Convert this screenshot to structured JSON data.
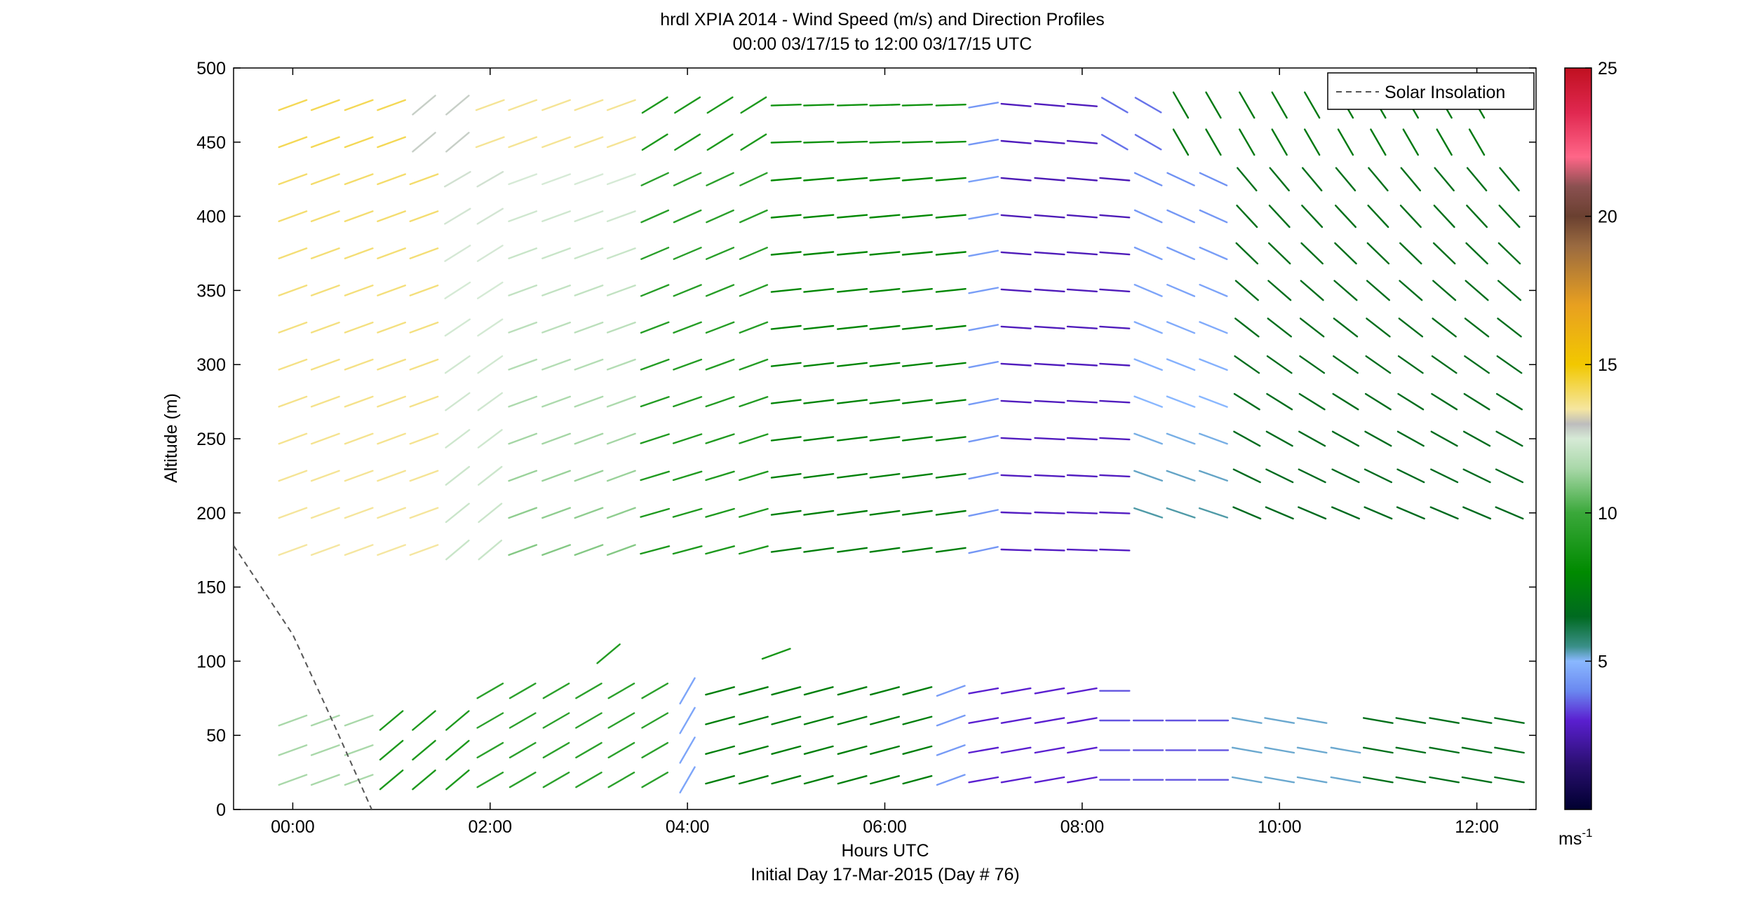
{
  "chart_data": {
    "type": "wind_barb_profile",
    "title": "hrdl XPIA 2014 - Wind Speed (m/s) and Direction Profiles",
    "subtitle": "00:00 03/17/15 to 12:00 03/17/15  UTC",
    "xlabel": "Hours UTC",
    "xlabel2": "Initial Day 17-Mar-2015 (Day # 76)",
    "ylabel": "Altitude (m)",
    "xlim": [
      -0.6,
      12.6
    ],
    "ylim": [
      0,
      500
    ],
    "x_ticks": [
      {
        "value": 0,
        "label": "00:00"
      },
      {
        "value": 2,
        "label": "02:00"
      },
      {
        "value": 4,
        "label": "04:00"
      },
      {
        "value": 6,
        "label": "06:00"
      },
      {
        "value": 8,
        "label": "08:00"
      },
      {
        "value": 10,
        "label": "10:00"
      },
      {
        "value": 12,
        "label": "12:00"
      }
    ],
    "y_ticks": [
      0,
      50,
      100,
      150,
      200,
      250,
      300,
      350,
      400,
      450,
      500
    ],
    "legend": {
      "label": "Solar Insolation",
      "placement": "top-right"
    },
    "solar_insolation_line": {
      "style": "dashed",
      "color": "#555555",
      "points": [
        [
          -0.6,
          178
        ],
        [
          0.0,
          118
        ],
        [
          0.4,
          60
        ],
        [
          0.8,
          0
        ]
      ]
    },
    "colorbar": {
      "min": 0,
      "max": 25,
      "ticks": [
        5,
        10,
        15,
        20,
        25
      ],
      "unit_label": "ms",
      "unit_superscript": "-1",
      "colormap": [
        [
          0,
          "#000030"
        ],
        [
          1.5,
          "#2a0f70"
        ],
        [
          3,
          "#5a1fd0"
        ],
        [
          4,
          "#6a88f0"
        ],
        [
          5,
          "#8ab8ff"
        ],
        [
          5.5,
          "#3a8f88"
        ],
        [
          6.5,
          "#006a20"
        ],
        [
          8,
          "#008a00"
        ],
        [
          10,
          "#3aa83a"
        ],
        [
          11.5,
          "#a9d8a9"
        ],
        [
          12.5,
          "#d6ead6"
        ],
        [
          13,
          "#bdbdbd"
        ],
        [
          13.5,
          "#f5e6a0"
        ],
        [
          15,
          "#f2c800"
        ],
        [
          17,
          "#e8a020"
        ],
        [
          19,
          "#9a6a40"
        ],
        [
          20,
          "#6a4030"
        ],
        [
          21,
          "#8a5050"
        ],
        [
          22,
          "#ff6688"
        ],
        [
          23.5,
          "#e02850"
        ],
        [
          25,
          "#c01020"
        ]
      ]
    },
    "barb_hours": [
      0.0,
      0.33,
      0.67,
      1.0,
      1.33,
      1.67,
      2.0,
      2.33,
      2.67,
      3.0,
      3.33,
      3.67,
      4.0,
      4.33,
      4.67,
      5.0,
      5.33,
      5.67,
      6.0,
      6.33,
      6.67,
      7.0,
      7.33,
      7.67,
      8.0,
      8.33,
      8.67,
      9.0,
      9.33,
      9.67,
      10.0,
      10.33,
      10.67,
      11.0,
      11.33,
      11.67,
      12.0,
      12.33
    ],
    "upper_levels": {
      "altitudes": [
        175,
        200,
        225,
        250,
        275,
        300,
        325,
        350,
        375,
        400,
        425
      ],
      "segments": [
        {
          "from_hour": 0.0,
          "to_hour": 1.4,
          "speed_top": 14.0,
          "speed_bottom": 13.5,
          "dir_top": 250,
          "dir_bottom": 250,
          "fade": [
            0,
            3
          ]
        },
        {
          "from_hour": 1.4,
          "to_hour": 2.3,
          "speed_top": 12.6,
          "speed_bottom": 12.2,
          "dir_top": 240,
          "dir_bottom": 230
        },
        {
          "from_hour": 2.3,
          "to_hour": 3.5,
          "speed_top": 12.5,
          "speed_bottom": 11.0,
          "dir_top": 250,
          "dir_bottom": 250
        },
        {
          "from_hour": 3.5,
          "to_hour": 4.7,
          "speed_top": 9.5,
          "speed_bottom": 9.0,
          "dir_top": 245,
          "dir_bottom": 255
        },
        {
          "from_hour": 4.7,
          "to_hour": 6.8,
          "speed_top": 8.0,
          "speed_bottom": 7.5,
          "dir_top": 265,
          "dir_bottom": 262
        },
        {
          "from_hour": 6.8,
          "to_hour": 7.2,
          "speed_top": 4.5,
          "speed_bottom": 4.3,
          "dir_top": 260,
          "dir_bottom": 258
        },
        {
          "from_hour": 7.2,
          "to_hour": 8.5,
          "speed_top": 2.6,
          "speed_bottom": 2.8,
          "dir_top": 275,
          "dir_bottom": 272
        },
        {
          "from_hour": 8.5,
          "to_hour": 9.4,
          "speed_top": 4.2,
          "speed_bottom": 5.5,
          "dir_top": 295,
          "dir_bottom": 288
        },
        {
          "from_hour": 9.4,
          "to_hour": 12.5,
          "speed_top": 6.8,
          "speed_bottom": 6.5,
          "dir_top": 320,
          "dir_bottom": 290
        }
      ],
      "top_row_altitudes": [
        450,
        475
      ],
      "top_row_segments": [
        {
          "from_hour": 0.0,
          "to_hour": 1.2,
          "speed": 14.2,
          "dir": 250
        },
        {
          "from_hour": 1.2,
          "to_hour": 1.8,
          "speed": 12.8,
          "dir": 230
        },
        {
          "from_hour": 1.8,
          "to_hour": 3.4,
          "speed": 13.6,
          "dir": 250
        },
        {
          "from_hour": 3.4,
          "to_hour": 4.7,
          "speed": 9.0,
          "dir": 238
        },
        {
          "from_hour": 4.7,
          "to_hour": 6.7,
          "speed": 8.5,
          "dir": 268
        },
        {
          "from_hour": 6.7,
          "to_hour": 7.2,
          "speed": 4.3,
          "dir": 260
        },
        {
          "from_hour": 7.2,
          "to_hour": 8.3,
          "speed": 2.7,
          "dir": 275
        },
        {
          "from_hour": 8.3,
          "to_hour": 9.0,
          "speed": 3.8,
          "dir": 300
        },
        {
          "from_hour": 9.0,
          "to_hour": 12.1,
          "speed": 7.2,
          "dir": 330
        }
      ]
    },
    "lower_levels": {
      "altitudes": [
        20,
        40,
        60,
        80
      ],
      "segments": [
        {
          "from_hour": 0.0,
          "to_hour": 0.9,
          "speed": 11.5,
          "dir": 250
        },
        {
          "from_hour": 0.9,
          "to_hour": 1.8,
          "speed": 9.0,
          "dir": 230
        },
        {
          "from_hour": 1.8,
          "to_hour": 3.8,
          "speed": 9.5,
          "dir": 240
        },
        {
          "from_hour": 3.8,
          "to_hour": 4.2,
          "speed": 4.6,
          "dir": 210
        },
        {
          "from_hour": 4.2,
          "to_hour": 6.5,
          "speed": 7.5,
          "dir": 255
        },
        {
          "from_hour": 6.5,
          "to_hour": 7.0,
          "speed": 4.4,
          "dir": 250
        },
        {
          "from_hour": 7.0,
          "to_hour": 8.3,
          "speed": 3.0,
          "dir": 260
        },
        {
          "from_hour": 8.3,
          "to_hour": 9.4,
          "speed": 3.5,
          "dir": 270
        },
        {
          "from_hour": 9.4,
          "to_hour": 10.8,
          "speed": 5.2,
          "dir": 280
        },
        {
          "from_hour": 10.8,
          "to_hour": 12.5,
          "speed": 6.8,
          "dir": 280
        }
      ],
      "extra_barbs": [
        {
          "hour": 3.2,
          "alt": 105,
          "speed": 9.2,
          "dir": 230
        },
        {
          "hour": 4.9,
          "alt": 105,
          "speed": 8.8,
          "dir": 250
        }
      ]
    }
  }
}
